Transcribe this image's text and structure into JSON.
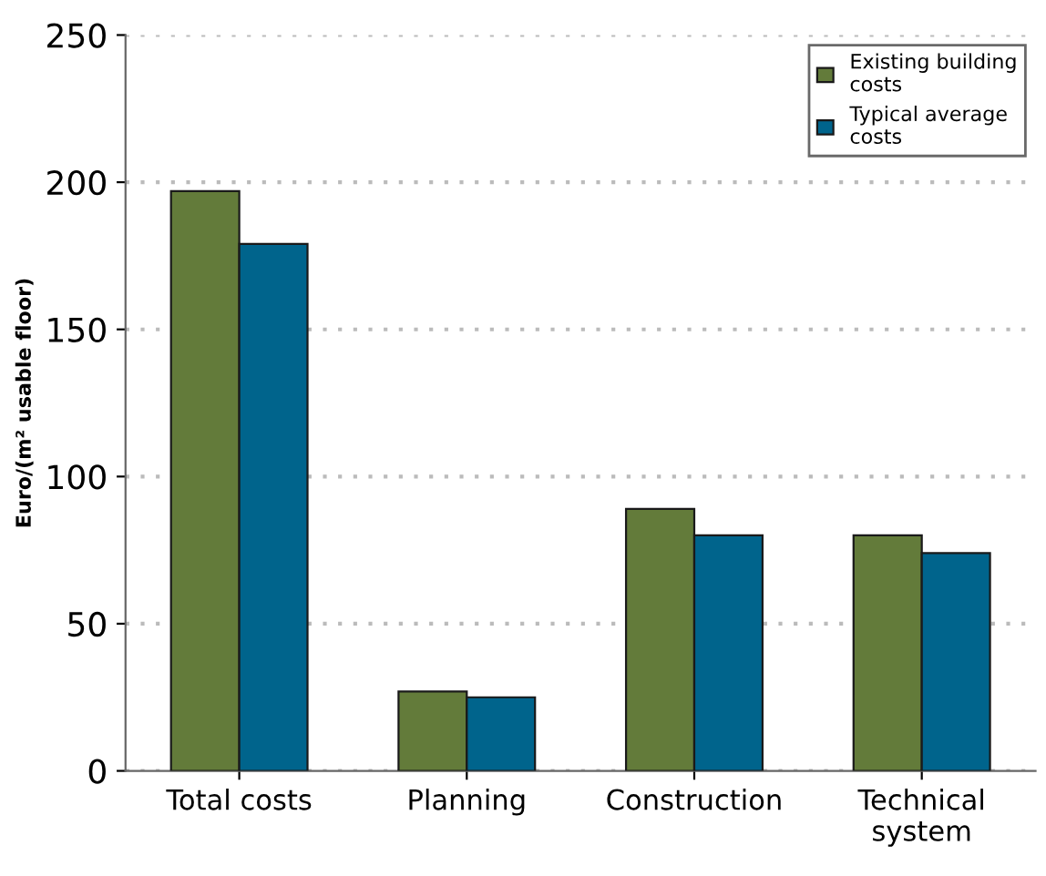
{
  "chart_data": {
    "type": "bar",
    "ylabel": "Euro/(m² usable floor)",
    "categories": [
      "Total costs",
      "Planning",
      "Construction",
      "Technical\nsystem"
    ],
    "series": [
      {
        "name": "Existing building\ncosts",
        "color": "#637b3a",
        "values": [
          197,
          27,
          89,
          80
        ]
      },
      {
        "name": "Typical average\ncosts",
        "color": "#00648c",
        "values": [
          179,
          25,
          80,
          74
        ]
      }
    ],
    "ylim": [
      0,
      250
    ],
    "yticks": [
      0,
      50,
      100,
      150,
      200,
      250
    ],
    "grid": "y",
    "legend": "top right"
  }
}
